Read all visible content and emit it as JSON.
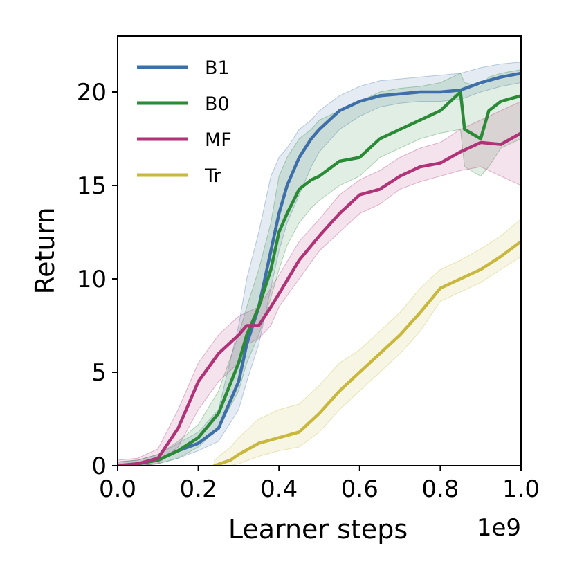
{
  "chart_data": {
    "type": "line",
    "title": "",
    "xlabel": "Learner steps",
    "ylabel": "Return",
    "x_scale_note": "1e9",
    "xlim": [
      0.0,
      1.0
    ],
    "ylim": [
      0,
      23
    ],
    "x_ticks": [
      0.0,
      0.2,
      0.4,
      0.6,
      0.8,
      1.0
    ],
    "x_tick_labels": [
      "0.0",
      "0.2",
      "0.4",
      "0.6",
      "0.8",
      "1.0"
    ],
    "y_ticks": [
      0,
      5,
      10,
      15,
      20
    ],
    "y_tick_labels": [
      "0",
      "5",
      "10",
      "15",
      "20"
    ],
    "grid": false,
    "legend_position": "top-left",
    "series": [
      {
        "name": "B1",
        "color": "#3f6fa8",
        "x": [
          0.0,
          0.05,
          0.1,
          0.15,
          0.2,
          0.25,
          0.3,
          0.32,
          0.35,
          0.38,
          0.4,
          0.42,
          0.45,
          0.48,
          0.5,
          0.55,
          0.6,
          0.65,
          0.7,
          0.75,
          0.8,
          0.85,
          0.9,
          0.95,
          1.0
        ],
        "y": [
          0.0,
          0.1,
          0.3,
          0.8,
          1.2,
          2.0,
          4.5,
          6.5,
          8.5,
          11.5,
          13.5,
          15.0,
          16.5,
          17.5,
          18.0,
          19.0,
          19.5,
          19.8,
          19.9,
          20.0,
          20.0,
          20.1,
          20.5,
          20.8,
          21.0
        ],
        "lower": [
          0.0,
          0.0,
          0.1,
          0.4,
          0.8,
          1.3,
          3.0,
          4.5,
          6.5,
          9.5,
          11.5,
          13.0,
          14.5,
          16.0,
          16.8,
          18.0,
          18.7,
          19.2,
          19.4,
          19.5,
          19.5,
          19.6,
          20.0,
          20.3,
          20.5
        ],
        "upper": [
          0.2,
          0.3,
          0.6,
          1.2,
          1.8,
          3.0,
          7.5,
          10.0,
          12.5,
          15.5,
          16.5,
          17.0,
          18.0,
          18.5,
          19.0,
          19.8,
          20.3,
          20.6,
          20.7,
          20.8,
          20.9,
          21.0,
          21.3,
          21.5,
          21.6
        ]
      },
      {
        "name": "B0",
        "color": "#2a8a36",
        "x": [
          0.0,
          0.05,
          0.1,
          0.15,
          0.2,
          0.25,
          0.3,
          0.32,
          0.35,
          0.38,
          0.4,
          0.42,
          0.45,
          0.48,
          0.5,
          0.55,
          0.6,
          0.65,
          0.7,
          0.75,
          0.8,
          0.85,
          0.86,
          0.9,
          0.92,
          0.95,
          1.0
        ],
        "y": [
          0.0,
          0.1,
          0.3,
          0.8,
          1.5,
          2.8,
          5.5,
          7.0,
          8.5,
          10.5,
          12.5,
          13.5,
          14.8,
          15.3,
          15.5,
          16.3,
          16.5,
          17.5,
          18.0,
          18.5,
          19.0,
          20.0,
          18.0,
          17.5,
          19.0,
          19.5,
          19.8
        ],
        "lower": [
          0.0,
          0.0,
          0.1,
          0.4,
          1.0,
          2.0,
          4.0,
          5.5,
          7.0,
          9.0,
          10.5,
          11.8,
          13.0,
          13.8,
          14.2,
          15.0,
          15.5,
          16.5,
          17.0,
          17.5,
          17.8,
          18.0,
          16.0,
          15.5,
          16.0,
          17.0,
          17.5
        ],
        "upper": [
          0.2,
          0.3,
          0.6,
          1.3,
          2.2,
          4.0,
          7.0,
          8.5,
          10.5,
          13.0,
          15.5,
          16.5,
          17.5,
          18.0,
          18.5,
          19.0,
          19.5,
          20.0,
          20.2,
          20.3,
          20.5,
          21.0,
          20.5,
          20.3,
          20.8,
          21.0,
          21.2
        ]
      },
      {
        "name": "MF",
        "color": "#b03378",
        "x": [
          0.0,
          0.05,
          0.1,
          0.15,
          0.2,
          0.25,
          0.3,
          0.32,
          0.35,
          0.38,
          0.4,
          0.45,
          0.5,
          0.55,
          0.6,
          0.65,
          0.7,
          0.75,
          0.8,
          0.85,
          0.9,
          0.95,
          1.0
        ],
        "y": [
          0.0,
          0.1,
          0.4,
          2.0,
          4.5,
          6.0,
          7.0,
          7.5,
          7.5,
          8.5,
          9.2,
          11.0,
          12.3,
          13.5,
          14.5,
          14.8,
          15.5,
          16.0,
          16.2,
          16.8,
          17.3,
          17.2,
          17.8
        ],
        "lower": [
          0.0,
          0.0,
          0.1,
          1.0,
          3.0,
          4.5,
          5.5,
          6.5,
          6.8,
          7.5,
          8.5,
          10.0,
          11.5,
          12.5,
          13.5,
          14.0,
          14.8,
          15.2,
          15.5,
          15.8,
          16.0,
          15.5,
          15.0
        ],
        "upper": [
          0.3,
          0.4,
          0.9,
          3.0,
          5.5,
          7.0,
          8.0,
          8.2,
          8.5,
          9.5,
          10.2,
          12.0,
          13.2,
          14.5,
          15.3,
          15.8,
          16.5,
          17.0,
          17.3,
          18.0,
          18.5,
          19.0,
          19.5
        ]
      },
      {
        "name": "Tr",
        "color": "#c9b83e",
        "x": [
          0.24,
          0.28,
          0.3,
          0.35,
          0.4,
          0.45,
          0.5,
          0.55,
          0.6,
          0.65,
          0.7,
          0.75,
          0.8,
          0.85,
          0.9,
          0.95,
          1.0
        ],
        "y": [
          0.0,
          0.3,
          0.6,
          1.2,
          1.5,
          1.8,
          2.8,
          4.0,
          5.0,
          6.0,
          7.0,
          8.2,
          9.5,
          10.0,
          10.5,
          11.2,
          12.0
        ],
        "lower": [
          0.0,
          0.0,
          0.1,
          0.5,
          0.8,
          1.0,
          1.8,
          3.0,
          4.0,
          5.0,
          6.0,
          7.2,
          8.8,
          9.3,
          9.8,
          10.5,
          11.2
        ],
        "upper": [
          0.3,
          1.0,
          1.5,
          2.5,
          3.0,
          3.3,
          4.3,
          5.5,
          6.2,
          7.2,
          8.2,
          9.5,
          10.5,
          11.0,
          11.6,
          12.3,
          13.2
        ]
      }
    ]
  }
}
